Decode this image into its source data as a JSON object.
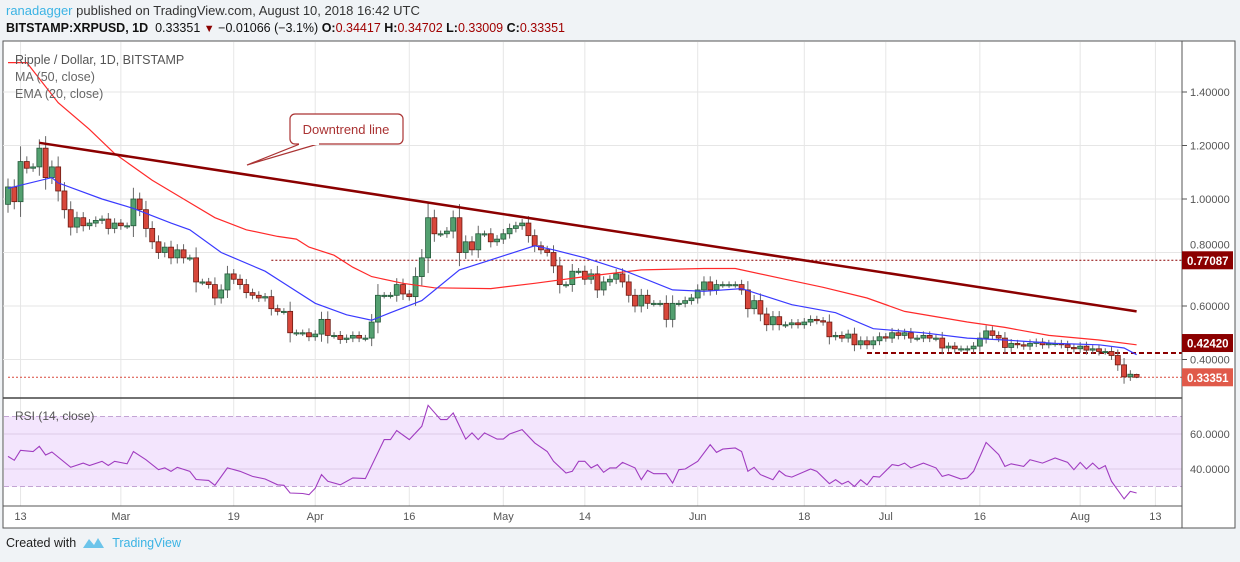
{
  "header": {
    "author": "ranadagger",
    "published_text": "published on TradingView.com, August 10, 2018 16:42 UTC",
    "symbol": "BITSTAMP:XRPUSD, 1D",
    "last": "0.33351",
    "change": "−0.01066 (−3.1%)",
    "o_label": "O:",
    "o": "0.34417",
    "h_label": "H:",
    "h": "0.34702",
    "l_label": "L:",
    "l": "0.33009",
    "c_label": "C:",
    "c": "0.33351"
  },
  "legend": {
    "title": "Ripple / Dollar, 1D, BITSTAMP",
    "ma": "MA (50, close)",
    "ema": "EMA (20, close)",
    "rsi": "RSI (14, close)"
  },
  "annotation": {
    "label": "Downtrend line"
  },
  "footer": {
    "created_with": "Created with",
    "brand": "TradingView"
  },
  "colors": {
    "up": "#53a070",
    "down": "#d8473b",
    "ma50": "#ff2a2a",
    "ema20": "#3a3aff",
    "trendline": "#8b0000",
    "rsi": "#a03cc0",
    "rsi_band": "#f3e5fd",
    "author": "#3bb3e4"
  },
  "chart_data": [
    {
      "type": "candlestick",
      "title": "Ripple / Dollar, 1D, BITSTAMP",
      "start_date": "2018-02-11",
      "first_open": 0.98,
      "closes": [
        1.045,
        0.99,
        1.14,
        1.115,
        1.12,
        1.19,
        1.08,
        1.12,
        1.03,
        0.96,
        0.895,
        0.93,
        0.9,
        0.91,
        0.92,
        0.925,
        0.89,
        0.91,
        0.9,
        0.9,
        1.0,
        0.96,
        0.89,
        0.84,
        0.8,
        0.82,
        0.78,
        0.81,
        0.78,
        0.78,
        0.69,
        0.69,
        0.68,
        0.63,
        0.66,
        0.72,
        0.7,
        0.68,
        0.65,
        0.64,
        0.63,
        0.635,
        0.59,
        0.58,
        0.58,
        0.5,
        0.5,
        0.5,
        0.485,
        0.495,
        0.55,
        0.49,
        0.49,
        0.475,
        0.48,
        0.49,
        0.48,
        0.48,
        0.54,
        0.64,
        0.64,
        0.64,
        0.68,
        0.645,
        0.635,
        0.71,
        0.78,
        0.93,
        0.87,
        0.87,
        0.88,
        0.93,
        0.8,
        0.84,
        0.81,
        0.87,
        0.87,
        0.84,
        0.85,
        0.87,
        0.89,
        0.9,
        0.91,
        0.863,
        0.825,
        0.81,
        0.8,
        0.75,
        0.68,
        0.68,
        0.73,
        0.73,
        0.7,
        0.72,
        0.66,
        0.69,
        0.7,
        0.72,
        0.69,
        0.64,
        0.6,
        0.64,
        0.61,
        0.61,
        0.61,
        0.55,
        0.61,
        0.61,
        0.62,
        0.63,
        0.66,
        0.69,
        0.66,
        0.68,
        0.68,
        0.68,
        0.68,
        0.66,
        0.59,
        0.62,
        0.57,
        0.53,
        0.56,
        0.53,
        0.53,
        0.537,
        0.53,
        0.54,
        0.55,
        0.545,
        0.54,
        0.485,
        0.49,
        0.48,
        0.495,
        0.455,
        0.47,
        0.455,
        0.47,
        0.485,
        0.48,
        0.5,
        0.49,
        0.5,
        0.48,
        0.48,
        0.49,
        0.48,
        0.48,
        0.443,
        0.45,
        0.44,
        0.44,
        0.44,
        0.45,
        0.48,
        0.507,
        0.49,
        0.48,
        0.445,
        0.46,
        0.455,
        0.45,
        0.46,
        0.465,
        0.455,
        0.46,
        0.46,
        0.455,
        0.445,
        0.44,
        0.45,
        0.435,
        0.44,
        0.43,
        0.43,
        0.415,
        0.38,
        0.335,
        0.345,
        0.33351
      ],
      "last_candle": {
        "open": 0.34417,
        "high": 0.34702,
        "low": 0.33009,
        "close": 0.33351
      },
      "ma50": [
        [
          "2018-02-11",
          1.51
        ],
        [
          "2018-02-14",
          1.51
        ],
        [
          "2018-02-19",
          1.36
        ],
        [
          "2018-02-24",
          1.26
        ],
        [
          "2018-02-28",
          1.17
        ],
        [
          "2018-03-06",
          1.07
        ],
        [
          "2018-03-11",
          1.0
        ],
        [
          "2018-03-16",
          0.93
        ],
        [
          "2018-03-21",
          0.885
        ],
        [
          "2018-03-26",
          0.86
        ],
        [
          "2018-03-29",
          0.85
        ],
        [
          "2018-03-31",
          0.82
        ],
        [
          "2018-04-04",
          0.79
        ],
        [
          "2018-04-07",
          0.745
        ],
        [
          "2018-04-10",
          0.71
        ],
        [
          "2018-04-15",
          0.685
        ],
        [
          "2018-04-20",
          0.668
        ],
        [
          "2018-04-29",
          0.665
        ],
        [
          "2018-05-06",
          0.685
        ],
        [
          "2018-05-14",
          0.71
        ],
        [
          "2018-05-23",
          0.735
        ],
        [
          "2018-06-02",
          0.74
        ],
        [
          "2018-06-07",
          0.74
        ],
        [
          "2018-06-15",
          0.7
        ],
        [
          "2018-06-21",
          0.67
        ],
        [
          "2018-06-28",
          0.63
        ],
        [
          "2018-07-04",
          0.58
        ],
        [
          "2018-07-14",
          0.54
        ],
        [
          "2018-07-20",
          0.52
        ],
        [
          "2018-07-27",
          0.49
        ],
        [
          "2018-08-04",
          0.473
        ],
        [
          "2018-08-10",
          0.455
        ]
      ],
      "ema20": [
        [
          "2018-02-11",
          1.04
        ],
        [
          "2018-02-18",
          1.08
        ],
        [
          "2018-02-19",
          1.06
        ],
        [
          "2018-02-26",
          1.0
        ],
        [
          "2018-03-03",
          0.965
        ],
        [
          "2018-03-09",
          0.91
        ],
        [
          "2018-03-12",
          0.885
        ],
        [
          "2018-03-17",
          0.8
        ],
        [
          "2018-03-24",
          0.73
        ],
        [
          "2018-03-27",
          0.685
        ],
        [
          "2018-04-01",
          0.61
        ],
        [
          "2018-04-06",
          0.567
        ],
        [
          "2018-04-10",
          0.547
        ],
        [
          "2018-04-13",
          0.575
        ],
        [
          "2018-04-18",
          0.62
        ],
        [
          "2018-04-24",
          0.735
        ],
        [
          "2018-04-28",
          0.765
        ],
        [
          "2018-05-04",
          0.81
        ],
        [
          "2018-05-06",
          0.825
        ],
        [
          "2018-05-09",
          0.81
        ],
        [
          "2018-05-14",
          0.78
        ],
        [
          "2018-05-20",
          0.735
        ],
        [
          "2018-05-28",
          0.66
        ],
        [
          "2018-06-02",
          0.655
        ],
        [
          "2018-06-08",
          0.665
        ],
        [
          "2018-06-16",
          0.605
        ],
        [
          "2018-06-23",
          0.575
        ],
        [
          "2018-06-29",
          0.515
        ],
        [
          "2018-07-07",
          0.5
        ],
        [
          "2018-07-14",
          0.48
        ],
        [
          "2018-07-20",
          0.473
        ],
        [
          "2018-07-28",
          0.46
        ],
        [
          "2018-08-04",
          0.455
        ],
        [
          "2018-08-08",
          0.443
        ],
        [
          "2018-08-10",
          0.418
        ]
      ],
      "trendline": [
        [
          "2018-02-16",
          1.21
        ],
        [
          "2018-08-10",
          0.58
        ]
      ],
      "horizontal_levels": [
        {
          "value": 0.77087,
          "label": "0.77087",
          "from": "2018-03-25",
          "style": "dotted"
        },
        {
          "value": 0.4242,
          "label": "0.42420",
          "from": "2018-06-28",
          "style": "dashed"
        },
        {
          "value": 0.33351,
          "label": "0.33351",
          "from": "2018-02-11",
          "style": "dotted"
        }
      ],
      "y_ticks": [
        "1.40000",
        "1.20000",
        "1.00000",
        "0.80000",
        "0.60000",
        "0.40000"
      ],
      "ylim": [
        0.3,
        1.6
      ],
      "grid": true
    },
    {
      "type": "line",
      "title": "RSI (14, close)",
      "y_ticks": [
        "60.0000",
        "40.0000"
      ],
      "band": [
        30,
        70
      ],
      "points": [
        [
          "2018-02-11",
          47.2
        ],
        [
          "2018-02-12",
          45
        ],
        [
          "2018-02-13",
          50.7
        ],
        [
          "2018-02-15",
          50
        ],
        [
          "2018-02-16",
          53
        ],
        [
          "2018-02-17",
          48
        ],
        [
          "2018-02-18",
          49.7
        ],
        [
          "2018-02-21",
          41
        ],
        [
          "2018-02-23",
          43.4
        ],
        [
          "2018-02-24",
          42
        ],
        [
          "2018-02-26",
          44.4
        ],
        [
          "2018-02-27",
          42
        ],
        [
          "2018-02-28",
          44.4
        ],
        [
          "2018-03-02",
          43
        ],
        [
          "2018-03-03",
          50
        ],
        [
          "2018-03-05",
          45.3
        ],
        [
          "2018-03-07",
          39.6
        ],
        [
          "2018-03-08",
          40.6
        ],
        [
          "2018-03-09",
          38.7
        ],
        [
          "2018-03-10",
          41
        ],
        [
          "2018-03-12",
          38.7
        ],
        [
          "2018-03-13",
          34
        ],
        [
          "2018-03-15",
          33.5
        ],
        [
          "2018-03-16",
          30.7
        ],
        [
          "2018-03-18",
          40.6
        ],
        [
          "2018-03-20",
          38.7
        ],
        [
          "2018-03-22",
          35.8
        ],
        [
          "2018-03-24",
          34.3
        ],
        [
          "2018-03-26",
          31
        ],
        [
          "2018-03-27",
          30.7
        ],
        [
          "2018-03-28",
          26.3
        ],
        [
          "2018-03-30",
          26
        ],
        [
          "2018-03-31",
          25.3
        ],
        [
          "2018-04-01",
          29
        ],
        [
          "2018-04-02",
          36.8
        ],
        [
          "2018-04-03",
          33
        ],
        [
          "2018-04-05",
          31
        ],
        [
          "2018-04-07",
          34.9
        ],
        [
          "2018-04-09",
          34.5
        ],
        [
          "2018-04-12",
          56.8
        ],
        [
          "2018-04-13",
          56.8
        ],
        [
          "2018-04-14",
          62
        ],
        [
          "2018-04-16",
          56.8
        ],
        [
          "2018-04-18",
          64.4
        ],
        [
          "2018-04-19",
          76.4
        ],
        [
          "2018-04-21",
          68.2
        ],
        [
          "2018-04-22",
          68.2
        ],
        [
          "2018-04-23",
          72
        ],
        [
          "2018-04-25",
          57.1
        ],
        [
          "2018-04-26",
          60.6
        ],
        [
          "2018-04-27",
          56.8
        ],
        [
          "2018-04-28",
          60.6
        ],
        [
          "2018-04-30",
          57.1
        ],
        [
          "2018-05-01",
          57.1
        ],
        [
          "2018-05-02",
          60
        ],
        [
          "2018-05-04",
          62.5
        ],
        [
          "2018-05-06",
          54.9
        ],
        [
          "2018-05-08",
          50
        ],
        [
          "2018-05-09",
          44.4
        ],
        [
          "2018-05-11",
          37.7
        ],
        [
          "2018-05-12",
          38.7
        ],
        [
          "2018-05-13",
          44.4
        ],
        [
          "2018-05-14",
          44.4
        ],
        [
          "2018-05-15",
          40.6
        ],
        [
          "2018-05-16",
          42.5
        ],
        [
          "2018-05-17",
          38.1
        ],
        [
          "2018-05-18",
          40.6
        ],
        [
          "2018-05-19",
          40.6
        ],
        [
          "2018-05-20",
          43.8
        ],
        [
          "2018-05-22",
          40.6
        ],
        [
          "2018-05-23",
          33.9
        ],
        [
          "2018-05-24",
          39.2
        ],
        [
          "2018-05-25",
          37.3
        ],
        [
          "2018-05-27",
          37.3
        ],
        [
          "2018-05-28",
          32
        ],
        [
          "2018-05-29",
          39.6
        ],
        [
          "2018-05-30",
          40
        ],
        [
          "2018-06-01",
          44.4
        ],
        [
          "2018-06-03",
          53.9
        ],
        [
          "2018-06-04",
          49.5
        ],
        [
          "2018-06-05",
          51.4
        ],
        [
          "2018-06-07",
          52
        ],
        [
          "2018-06-08",
          50
        ],
        [
          "2018-06-09",
          38.7
        ],
        [
          "2018-06-10",
          41
        ],
        [
          "2018-06-11",
          36.8
        ],
        [
          "2018-06-13",
          33.9
        ],
        [
          "2018-06-14",
          39
        ],
        [
          "2018-06-15",
          36.2
        ],
        [
          "2018-06-16",
          35.4
        ],
        [
          "2018-06-19",
          40
        ],
        [
          "2018-06-20",
          38.7
        ],
        [
          "2018-06-22",
          31.6
        ],
        [
          "2018-06-23",
          33.9
        ],
        [
          "2018-06-24",
          31.4
        ],
        [
          "2018-06-25",
          33
        ],
        [
          "2018-06-26",
          30
        ],
        [
          "2018-06-27",
          33.9
        ],
        [
          "2018-06-28",
          31
        ],
        [
          "2018-06-29",
          35.8
        ],
        [
          "2018-06-30",
          35.4
        ],
        [
          "2018-07-02",
          42.5
        ],
        [
          "2018-07-03",
          41.9
        ],
        [
          "2018-07-04",
          43.4
        ],
        [
          "2018-07-05",
          40.6
        ],
        [
          "2018-07-07",
          43.4
        ],
        [
          "2018-07-09",
          40.6
        ],
        [
          "2018-07-10",
          35.8
        ],
        [
          "2018-07-11",
          36.8
        ],
        [
          "2018-07-13",
          34.3
        ],
        [
          "2018-07-14",
          34.9
        ],
        [
          "2018-07-15",
          38.7
        ],
        [
          "2018-07-17",
          55.2
        ],
        [
          "2018-07-19",
          48.2
        ],
        [
          "2018-07-20",
          41.5
        ],
        [
          "2018-07-21",
          43
        ],
        [
          "2018-07-23",
          41.5
        ],
        [
          "2018-07-24",
          45.3
        ],
        [
          "2018-07-26",
          43.4
        ],
        [
          "2018-07-28",
          46.3
        ],
        [
          "2018-07-30",
          43.8
        ],
        [
          "2018-07-31",
          39.6
        ],
        [
          "2018-08-01",
          43.8
        ],
        [
          "2018-08-02",
          40
        ],
        [
          "2018-08-03",
          43.4
        ],
        [
          "2018-08-04",
          40
        ],
        [
          "2018-08-05",
          41.9
        ],
        [
          "2018-08-06",
          33
        ],
        [
          "2018-08-08",
          22.9
        ],
        [
          "2018-08-09",
          27.2
        ],
        [
          "2018-08-10",
          26.3
        ]
      ]
    }
  ],
  "x_ticks": [
    [
      "2018-02-13",
      "13"
    ],
    [
      "2018-03-01",
      "Mar"
    ],
    [
      "2018-03-19",
      "19"
    ],
    [
      "2018-04-01",
      "Apr"
    ],
    [
      "2018-04-16",
      "16"
    ],
    [
      "2018-05-01",
      "May"
    ],
    [
      "2018-05-14",
      "14"
    ],
    [
      "2018-06-01",
      "Jun"
    ],
    [
      "2018-06-18",
      "18"
    ],
    [
      "2018-07-01",
      "Jul"
    ],
    [
      "2018-07-16",
      "16"
    ],
    [
      "2018-08-01",
      "Aug"
    ],
    [
      "2018-08-13",
      "13"
    ]
  ]
}
